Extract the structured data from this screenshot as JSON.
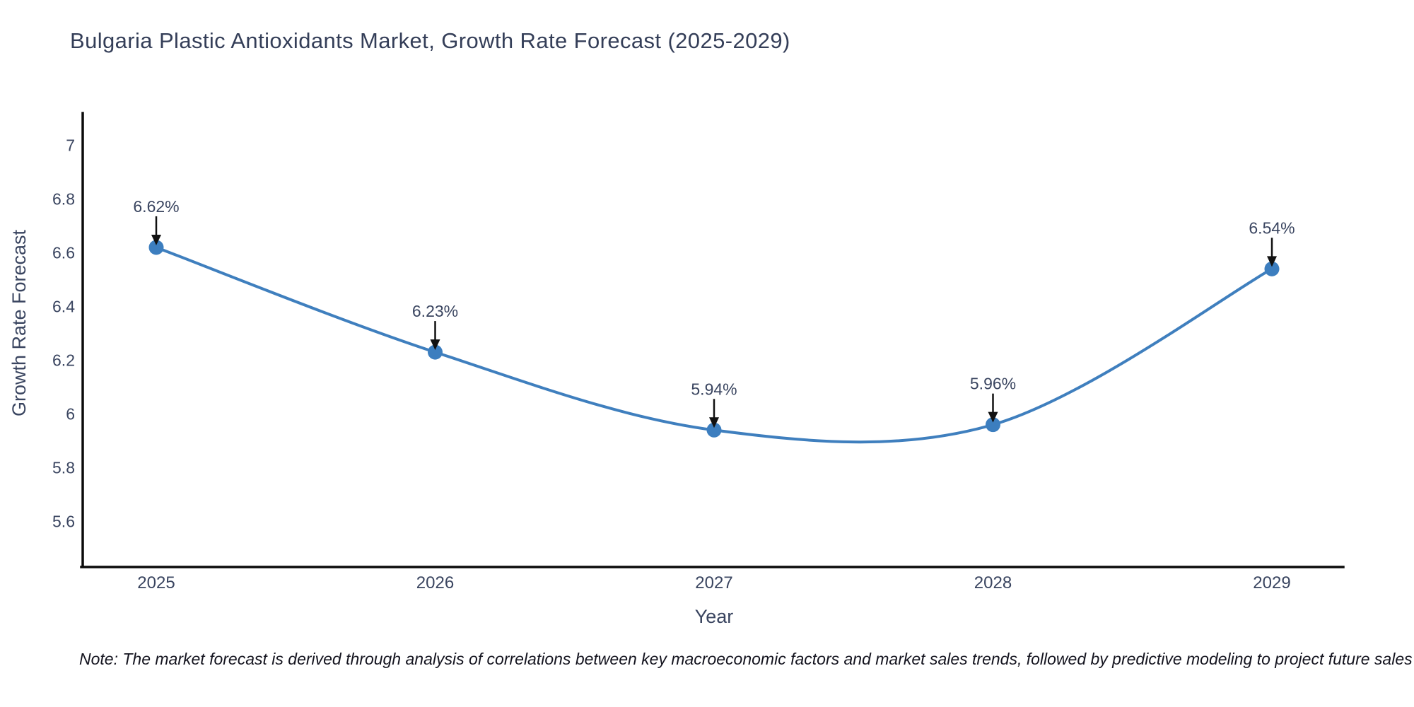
{
  "title": "Bulgaria Plastic Antioxidants Market, Growth Rate Forecast (2025-2029)",
  "note": "Note: The market forecast is derived through analysis of correlations between key macroeconomic factors and market sales trends, followed by predictive modeling to project future sales",
  "chart_data": {
    "type": "line",
    "title": "Bulgaria Plastic Antioxidants Market, Growth Rate Forecast (2025-2029)",
    "x": [
      2025,
      2026,
      2027,
      2028,
      2029
    ],
    "values": [
      6.62,
      6.23,
      5.94,
      5.96,
      6.54
    ],
    "point_labels": [
      "6.62%",
      "6.23%",
      "5.94%",
      "5.96%",
      "6.54%"
    ],
    "xlabel": "Year",
    "ylabel": "Growth Rate Forecast",
    "yticks": [
      7,
      6.8,
      6.6,
      6.4,
      6.2,
      6,
      5.8,
      5.6
    ],
    "ylim": [
      5.43,
      7.12
    ],
    "grid": false,
    "legend": false,
    "curve": "spline",
    "colors": {
      "line": "#3f7fbe",
      "marker": "#3c7ebf",
      "axis": "#0b0b0b",
      "text": "#3a4560",
      "annotation_arrow": "#111111"
    }
  }
}
